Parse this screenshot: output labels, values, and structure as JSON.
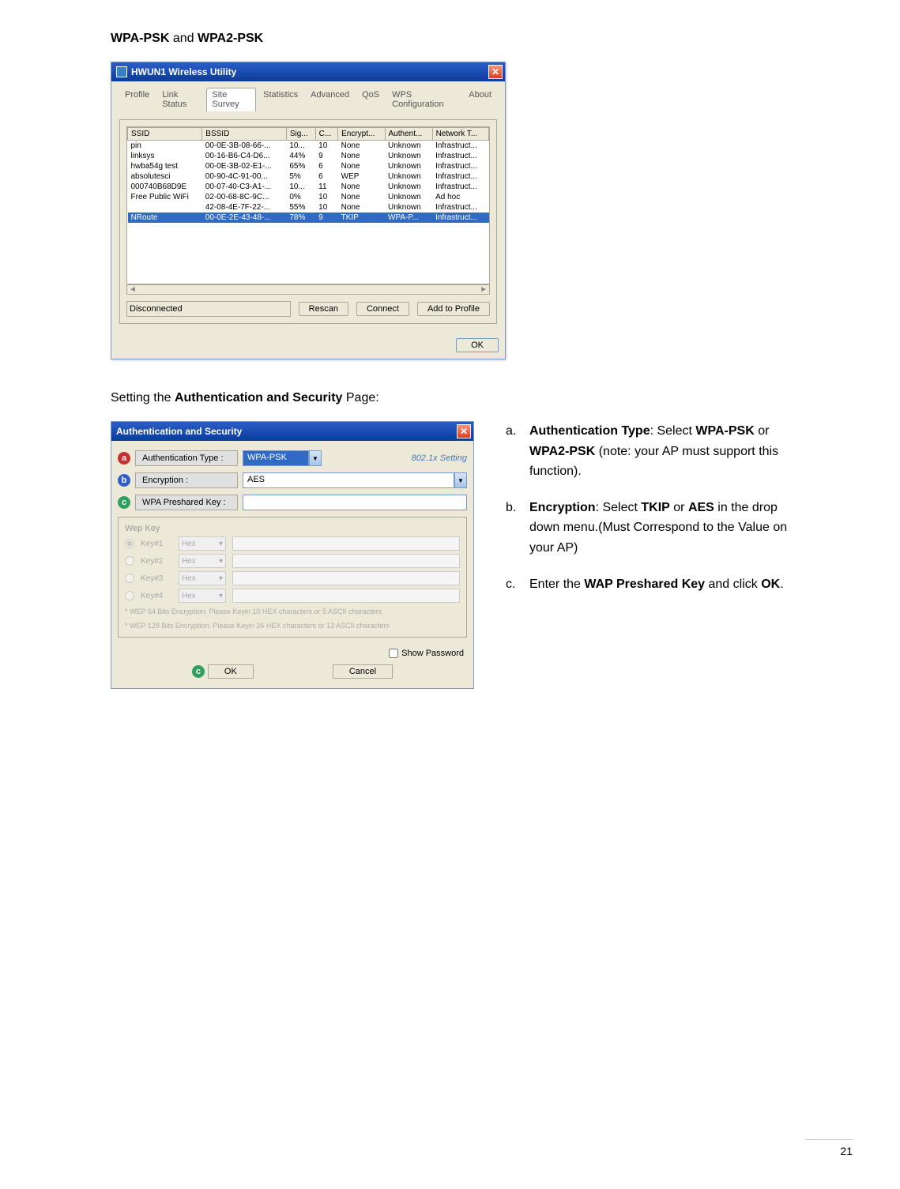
{
  "page_number": "21",
  "section_title_pre": "",
  "section_title_bold1": "WPA-PSK",
  "section_title_mid": " and ",
  "section_title_bold2": "WPA2-PSK",
  "window1": {
    "title": "HWUN1 Wireless Utility",
    "tabs": [
      "Profile",
      "Link Status",
      "Site Survey",
      "Statistics",
      "Advanced",
      "QoS",
      "WPS Configuration",
      "About"
    ],
    "active_tab": 2,
    "columns": [
      "SSID",
      "BSSID",
      "Sig...",
      "C...",
      "Encrypt...",
      "Authent...",
      "Network T..."
    ],
    "rows": [
      {
        "ssid": "pin",
        "bssid": "00-0E-3B-08-66-...",
        "sig": "10...",
        "ch": "10",
        "enc": "None",
        "auth": "Unknown",
        "net": "Infrastruct..."
      },
      {
        "ssid": "linksys",
        "bssid": "00-16-B6-C4-D6...",
        "sig": "44%",
        "ch": "9",
        "enc": "None",
        "auth": "Unknown",
        "net": "Infrastruct..."
      },
      {
        "ssid": "hwba54g test",
        "bssid": "00-0E-3B-02-E1-...",
        "sig": "65%",
        "ch": "6",
        "enc": "None",
        "auth": "Unknown",
        "net": "Infrastruct..."
      },
      {
        "ssid": "absolutesci",
        "bssid": "00-90-4C-91-00...",
        "sig": "5%",
        "ch": "6",
        "enc": "WEP",
        "auth": "Unknown",
        "net": "Infrastruct..."
      },
      {
        "ssid": "000740B68D9E",
        "bssid": "00-07-40-C3-A1-...",
        "sig": "10...",
        "ch": "11",
        "enc": "None",
        "auth": "Unknown",
        "net": "Infrastruct..."
      },
      {
        "ssid": "Free Public WiFi",
        "bssid": "02-00-68-8C-9C...",
        "sig": "0%",
        "ch": "10",
        "enc": "None",
        "auth": "Unknown",
        "net": "Ad hoc"
      },
      {
        "ssid": "",
        "bssid": "42-08-4E-7F-22-...",
        "sig": "55%",
        "ch": "10",
        "enc": "None",
        "auth": "Unknown",
        "net": "Infrastruct..."
      },
      {
        "ssid": "NRoute",
        "bssid": "00-0E-2E-43-48-...",
        "sig": "78%",
        "ch": "9",
        "enc": "TKIP",
        "auth": "WPA-P...",
        "net": "Infrastruct...",
        "selected": true
      }
    ],
    "status": "Disconnected",
    "btn_rescan": "Rescan",
    "btn_connect": "Connect",
    "btn_add": "Add to Profile",
    "btn_ok": "OK"
  },
  "subtitle_pre": "Setting the ",
  "subtitle_bold": "Authentication and Security",
  "subtitle_post": " Page:",
  "window2": {
    "title": "Authentication and Security",
    "rows": {
      "auth_type_label": "Authentication Type :",
      "auth_type_value": "WPA-PSK",
      "auth_type_link": "802.1x Setting",
      "encryption_label": "Encryption :",
      "encryption_value": "AES",
      "preshared_label": "WPA Preshared Key :",
      "wep_title": "Wep Key",
      "wep_keys": [
        {
          "label": "Key#1",
          "type": "Hex"
        },
        {
          "label": "Key#2",
          "type": "Hex"
        },
        {
          "label": "Key#3",
          "type": "Hex"
        },
        {
          "label": "Key#4",
          "type": "Hex"
        }
      ],
      "hint1": "* WEP 64 Bits Encryption: Please Keyin 10 HEX characters or 5 ASCII characters",
      "hint2": "* WEP 128 Bits Encryption: Please Keyin 26 HEX characters or 13 ASCII characters"
    },
    "show_password": "Show Password",
    "btn_ok": "OK",
    "btn_cancel": "Cancel"
  },
  "instructions": {
    "a": {
      "marker": "a.",
      "pre": "",
      "b1": "Authentication Type",
      "m1": ": Select ",
      "b2": "WPA-PSK",
      "m2": " or ",
      "b3": "WPA2-PSK",
      "post": " (note: your AP must support this function)."
    },
    "b": {
      "marker": "b.",
      "b1": "Encryption",
      "m1": ": Select ",
      "b2": "TKIP",
      "m2": " or ",
      "b3": "AES",
      "post": " in the drop down menu.(Must Correspond to the Value on your AP)"
    },
    "c": {
      "marker": "c.",
      "pre": "Enter the ",
      "b1": "WAP Preshared Key",
      "m1": " and click ",
      "b2": "OK",
      "post": "."
    }
  }
}
